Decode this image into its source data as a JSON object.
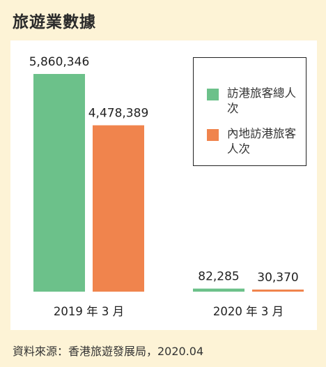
{
  "header": {
    "title": "旅遊業數據"
  },
  "footer": {
    "source": "資料來源：香港旅遊發展局，2020.04"
  },
  "legend": [
    {
      "label": "訪港旅客總人次",
      "color": "#6cc18a"
    },
    {
      "label": "內地訪港旅客人次",
      "color": "#f0844d"
    }
  ],
  "chart_data": {
    "type": "bar",
    "title": "旅遊業數據",
    "categories": [
      "2019 年 3 月",
      "2020 年 3 月"
    ],
    "series": [
      {
        "name": "訪港旅客總人次",
        "color": "#6cc18a",
        "values": [
          5860346,
          82285
        ],
        "labels": [
          "5,860,346",
          "82,285"
        ]
      },
      {
        "name": "內地訪港旅客人次",
        "color": "#f0844d",
        "values": [
          4478389,
          30370
        ],
        "labels": [
          "4,478,389",
          "30,370"
        ]
      }
    ],
    "ylim": [
      0,
      5860346
    ],
    "xlabel": "",
    "ylabel": "",
    "grid": false,
    "legend_position": "top-right"
  }
}
